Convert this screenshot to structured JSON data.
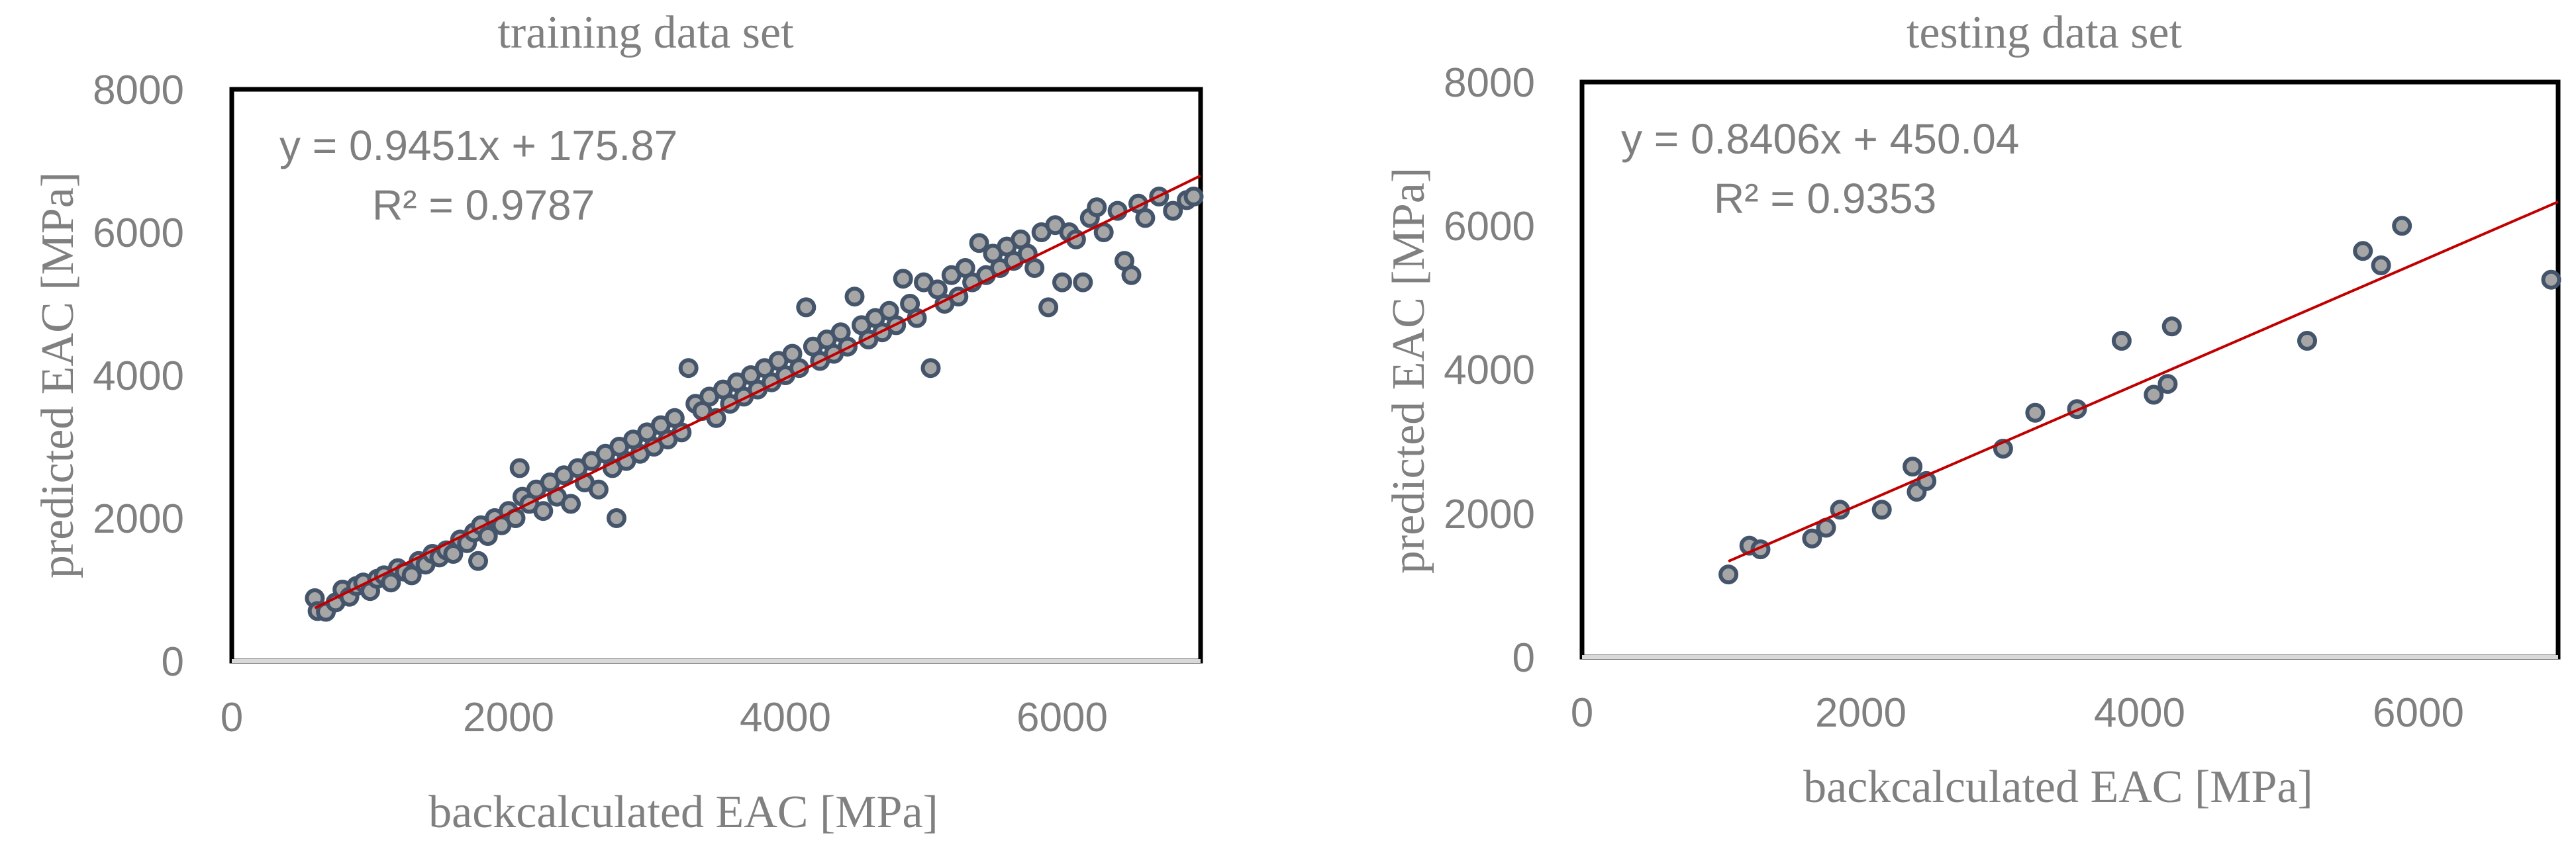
{
  "chart_data": [
    {
      "type": "scatter",
      "title": "training data set",
      "xlabel": "backcalculated EAC [MPa]",
      "ylabel": "predicted EAC [MPa]",
      "xlim": [
        0,
        7000
      ],
      "ylim": [
        0,
        8000
      ],
      "xticks": [
        "0",
        "2000",
        "4000",
        "6000"
      ],
      "yticks": [
        "0",
        "2000",
        "4000",
        "6000",
        "8000"
      ],
      "grid": false,
      "legend": "none",
      "colors": {
        "marker_fill": "#a6a6a6",
        "marker_edge": "#44546a",
        "trendline": "#c00000"
      },
      "trendline": {
        "slope": 0.9451,
        "intercept": 175.87,
        "equation": "y = 0.9451x + 175.87",
        "r2_label": "R² = 0.9787"
      },
      "points": [
        [
          600,
          880
        ],
        [
          620,
          700
        ],
        [
          680,
          690
        ],
        [
          750,
          820
        ],
        [
          800,
          1000
        ],
        [
          850,
          900
        ],
        [
          900,
          1050
        ],
        [
          950,
          1100
        ],
        [
          1000,
          980
        ],
        [
          1050,
          1150
        ],
        [
          1100,
          1200
        ],
        [
          1150,
          1100
        ],
        [
          1200,
          1300
        ],
        [
          1250,
          1250
        ],
        [
          1300,
          1200
        ],
        [
          1350,
          1400
        ],
        [
          1400,
          1350
        ],
        [
          1450,
          1500
        ],
        [
          1500,
          1450
        ],
        [
          1550,
          1550
        ],
        [
          1600,
          1500
        ],
        [
          1650,
          1700
        ],
        [
          1700,
          1650
        ],
        [
          1750,
          1800
        ],
        [
          1780,
          1400
        ],
        [
          1800,
          1900
        ],
        [
          1850,
          1750
        ],
        [
          1900,
          2000
        ],
        [
          1950,
          1900
        ],
        [
          2000,
          2100
        ],
        [
          2050,
          2000
        ],
        [
          2080,
          2700
        ],
        [
          2100,
          2300
        ],
        [
          2150,
          2200
        ],
        [
          2200,
          2400
        ],
        [
          2250,
          2100
        ],
        [
          2300,
          2500
        ],
        [
          2350,
          2300
        ],
        [
          2400,
          2600
        ],
        [
          2450,
          2200
        ],
        [
          2500,
          2700
        ],
        [
          2550,
          2500
        ],
        [
          2600,
          2800
        ],
        [
          2650,
          2400
        ],
        [
          2700,
          2900
        ],
        [
          2750,
          2700
        ],
        [
          2780,
          2000
        ],
        [
          2800,
          3000
        ],
        [
          2850,
          2800
        ],
        [
          2900,
          3100
        ],
        [
          2950,
          2900
        ],
        [
          3000,
          3200
        ],
        [
          3050,
          3000
        ],
        [
          3100,
          3300
        ],
        [
          3150,
          3100
        ],
        [
          3200,
          3400
        ],
        [
          3250,
          3200
        ],
        [
          3300,
          4100
        ],
        [
          3350,
          3600
        ],
        [
          3400,
          3500
        ],
        [
          3450,
          3700
        ],
        [
          3500,
          3400
        ],
        [
          3550,
          3800
        ],
        [
          3600,
          3600
        ],
        [
          3650,
          3900
        ],
        [
          3700,
          3700
        ],
        [
          3750,
          4000
        ],
        [
          3800,
          3800
        ],
        [
          3850,
          4100
        ],
        [
          3900,
          3900
        ],
        [
          3950,
          4200
        ],
        [
          4000,
          4000
        ],
        [
          4050,
          4300
        ],
        [
          4100,
          4100
        ],
        [
          4150,
          4950
        ],
        [
          4200,
          4400
        ],
        [
          4250,
          4200
        ],
        [
          4300,
          4500
        ],
        [
          4350,
          4300
        ],
        [
          4400,
          4600
        ],
        [
          4450,
          4400
        ],
        [
          4500,
          5100
        ],
        [
          4550,
          4700
        ],
        [
          4600,
          4500
        ],
        [
          4650,
          4800
        ],
        [
          4700,
          4600
        ],
        [
          4750,
          4900
        ],
        [
          4800,
          4700
        ],
        [
          4850,
          5350
        ],
        [
          4900,
          5000
        ],
        [
          4950,
          4800
        ],
        [
          5000,
          5300
        ],
        [
          5050,
          4100
        ],
        [
          5100,
          5200
        ],
        [
          5150,
          5000
        ],
        [
          5200,
          5400
        ],
        [
          5250,
          5100
        ],
        [
          5300,
          5500
        ],
        [
          5350,
          5300
        ],
        [
          5400,
          5850
        ],
        [
          5450,
          5400
        ],
        [
          5500,
          5700
        ],
        [
          5550,
          5500
        ],
        [
          5600,
          5800
        ],
        [
          5650,
          5600
        ],
        [
          5700,
          5900
        ],
        [
          5750,
          5700
        ],
        [
          5800,
          5500
        ],
        [
          5850,
          6000
        ],
        [
          5900,
          4950
        ],
        [
          5950,
          6100
        ],
        [
          6000,
          5300
        ],
        [
          6050,
          6000
        ],
        [
          6100,
          5900
        ],
        [
          6150,
          5300
        ],
        [
          6200,
          6200
        ],
        [
          6250,
          6350
        ],
        [
          6300,
          6000
        ],
        [
          6400,
          6300
        ],
        [
          6450,
          5600
        ],
        [
          6500,
          5400
        ],
        [
          6550,
          6400
        ],
        [
          6600,
          6200
        ],
        [
          6700,
          6500
        ],
        [
          6800,
          6300
        ],
        [
          6900,
          6450
        ],
        [
          6950,
          6500
        ]
      ]
    },
    {
      "type": "scatter",
      "title": "testing data set",
      "xlabel": "backcalculated EAC [MPa]",
      "ylabel": "predicted EAC [MPa]",
      "xlim": [
        0,
        7000
      ],
      "ylim": [
        0,
        8000
      ],
      "xticks": [
        "0",
        "2000",
        "4000",
        "6000"
      ],
      "yticks": [
        "0",
        "2000",
        "4000",
        "6000",
        "8000"
      ],
      "grid": false,
      "legend": "none",
      "colors": {
        "marker_fill": "#a6a6a6",
        "marker_edge": "#44546a",
        "trendline": "#c00000"
      },
      "trendline": {
        "slope": 0.8406,
        "intercept": 450.04,
        "equation": "y = 0.8406x + 450.04",
        "r2_label": "R² = 0.9353"
      },
      "points": [
        [
          1050,
          1150
        ],
        [
          1200,
          1550
        ],
        [
          1280,
          1500
        ],
        [
          1650,
          1650
        ],
        [
          1750,
          1800
        ],
        [
          1850,
          2050
        ],
        [
          2150,
          2050
        ],
        [
          2370,
          2650
        ],
        [
          2400,
          2300
        ],
        [
          2470,
          2450
        ],
        [
          3020,
          2900
        ],
        [
          3250,
          3400
        ],
        [
          3550,
          3450
        ],
        [
          3870,
          4400
        ],
        [
          4100,
          3650
        ],
        [
          4200,
          3800
        ],
        [
          4230,
          4600
        ],
        [
          5200,
          4400
        ],
        [
          5600,
          5650
        ],
        [
          5730,
          5450
        ],
        [
          5880,
          6000
        ],
        [
          6950,
          5250
        ]
      ]
    }
  ]
}
